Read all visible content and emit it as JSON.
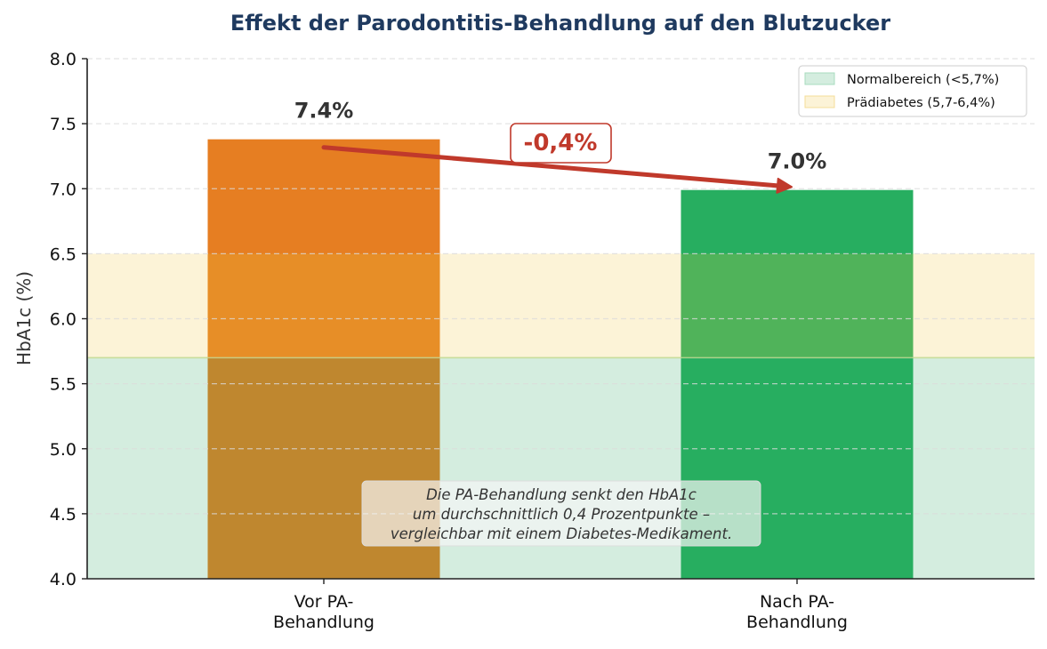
{
  "chart_data": {
    "type": "bar",
    "title": "Effekt der Parodontitis-Behandlung auf den Blutzucker",
    "xlabel": "",
    "ylabel": "HbA1c (%)",
    "ylim": [
      4.0,
      8.0
    ],
    "yticks": [
      4.0,
      4.5,
      5.0,
      5.5,
      6.0,
      6.5,
      7.0,
      7.5,
      8.0
    ],
    "ytick_labels": [
      "4.0",
      "4.5",
      "5.0",
      "5.5",
      "6.0",
      "6.5",
      "7.0",
      "7.5",
      "8.0"
    ],
    "grid": "y, dashed",
    "categories": [
      "Vor PA-\nBehandlung",
      "Nach PA-\nBehandlung"
    ],
    "category_lines": [
      [
        "Vor PA-",
        "Behandlung"
      ],
      [
        "Nach PA-",
        "Behandlung"
      ]
    ],
    "values": [
      7.38,
      6.99
    ],
    "value_labels": [
      "7.4%",
      "7.0%"
    ],
    "bar_colors": [
      "#e67e22",
      "#27ae60"
    ],
    "bands": [
      {
        "name": "Normalbereich (<5,7%)",
        "from": 4.0,
        "to": 5.7,
        "color": "#d4eddf",
        "edge": "#a8dcbf"
      },
      {
        "name": "Prädiabetes (5,7-6,4%)",
        "from": 5.7,
        "to": 6.5,
        "color": "#fcf3d7",
        "edge": "#f5dc9a"
      }
    ],
    "legend": {
      "placement": "top-right",
      "entries": [
        "Normalbereich (<5,7%)",
        "Prädiabetes (5,7-6,4%)"
      ]
    },
    "annotations": {
      "arrow": {
        "from_category": 0,
        "from_value": 7.4,
        "to_category": 1,
        "to_value": 7.0,
        "color": "#c0392b"
      },
      "delta_label": "-0,4%",
      "note_lines": [
        "Die PA-Behandlung senkt den HbA1c",
        "um durchschnittlich 0,4 Prozentpunkte –",
        "vergleichbar mit einem Diabetes-Medikament."
      ]
    }
  }
}
